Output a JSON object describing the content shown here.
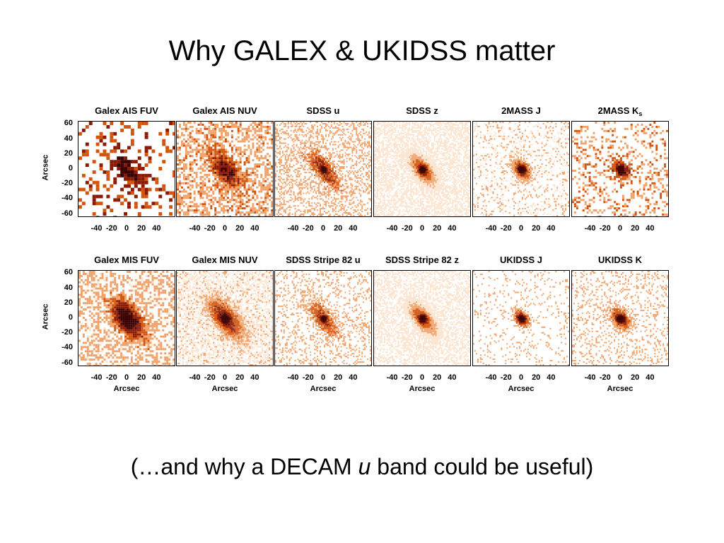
{
  "title": "Why GALEX & UKIDSS matter",
  "subtitle": {
    "before": "(…and why a DECAM ",
    "italic": "u",
    "after": " band could be useful)"
  },
  "row1_titles": [
    "Galex AIS FUV",
    "Galex AIS NUV",
    "SDSS u",
    "SDSS z",
    "2MASS J",
    "2MASS K"
  ],
  "row1_last_sub": "s",
  "row2_titles": [
    "Galex MIS FUV",
    "Galex MIS NUV",
    "SDSS Stripe 82 u",
    "SDSS Stripe 82 z",
    "UKIDSS J",
    "UKIDSS K"
  ],
  "x_ticks": [
    "-40",
    "-20",
    "0",
    "20",
    "40"
  ],
  "y_ticks": [
    "60",
    "40",
    "20",
    "0",
    "-20",
    "-40",
    "-60"
  ],
  "y_axis_label": "Arcsec",
  "x_axis_label": "Arcsec",
  "colors": {
    "cmap_dark": "#3a0000",
    "cmap_mid": "#d2550e",
    "cmap_light": "#fbe4cf"
  }
}
